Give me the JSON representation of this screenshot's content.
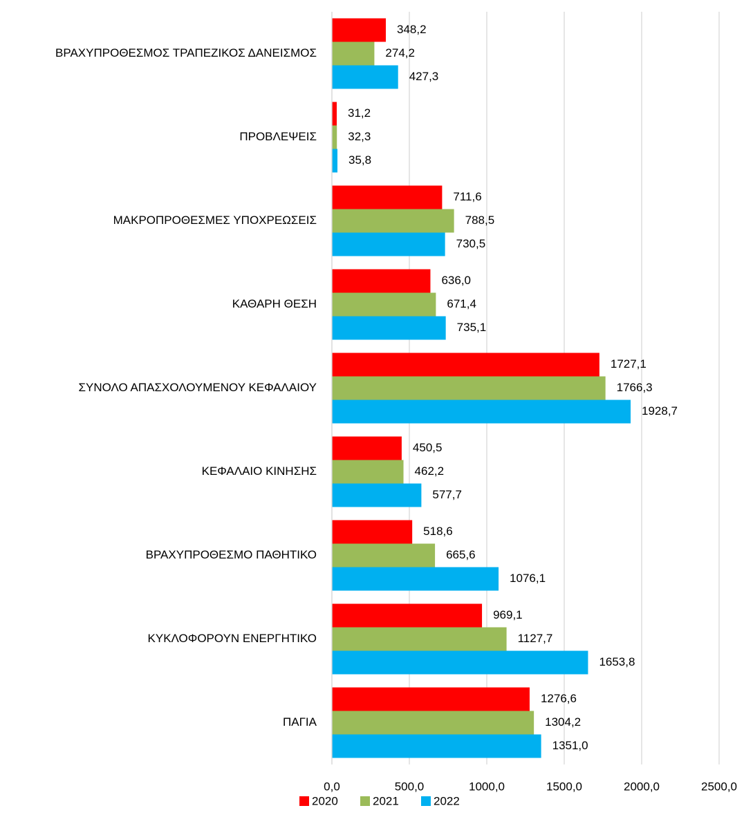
{
  "chart_data": {
    "type": "barh",
    "categories": [
      "ΒΡΑΧΥΠΡΟΘΕΣΜΟΣ ΤΡΑΠΕΖΙΚΟΣ ΔΑΝΕΙΣΜΟΣ",
      "ΠΡΟΒΛΕΨΕΙΣ",
      "ΜΑΚΡΟΠΡΟΘΕΣΜΕΣ ΥΠΟΧΡΕΩΣΕΙΣ",
      "ΚΑΘΑΡΗ ΘΕΣΗ",
      "ΣΥΝΟΛΟ ΑΠΑΣΧΟΛΟΥΜΕΝΟΥ ΚΕΦΑΛΑΙΟΥ",
      "ΚΕΦΑΛΑΙΟ ΚΙΝΗΣΗΣ",
      "ΒΡΑΧΥΠΡΟΘΕΣΜΟ ΠΑΘΗΤΙΚΟ",
      "ΚΥΚΛΟΦΟΡΟΥΝ ΕΝΕΡΓΗΤΙΚΟ",
      "ΠΑΓΙΑ"
    ],
    "series": [
      {
        "name": "2020",
        "color": "#ff0000",
        "label_color": "#000000",
        "values": [
          348.2,
          31.2,
          711.6,
          636.0,
          1727.1,
          450.5,
          518.6,
          969.1,
          1276.6
        ],
        "value_labels": [
          "348,2",
          "31,2",
          "711,6",
          "636,0",
          "1727,1",
          "450,5",
          "518,6",
          "969,1",
          "1276,6"
        ]
      },
      {
        "name": "2021",
        "color": "#9bbb59",
        "label_color": "#595959",
        "values": [
          274.2,
          32.3,
          788.5,
          671.4,
          1766.3,
          462.2,
          665.6,
          1127.7,
          1304.2
        ],
        "value_labels": [
          "274,2",
          "32,3",
          "788,5",
          "671,4",
          "1766,3",
          "462,2",
          "665,6",
          "1127,7",
          "1304,2"
        ]
      },
      {
        "name": "2022",
        "color": "#00b0f0",
        "label_color": "#000000",
        "values": [
          427.3,
          35.8,
          730.5,
          735.1,
          1928.7,
          577.7,
          1076.1,
          1653.8,
          1351.0
        ],
        "value_labels": [
          "427,3",
          "35,8",
          "730,5",
          "735,1",
          "1928,7",
          "577,7",
          "1076,1",
          "1653,8",
          "1351,0"
        ]
      }
    ],
    "xlim": [
      0,
      2500
    ],
    "xticks": [
      {
        "value": 0,
        "label": "0,0"
      },
      {
        "value": 500,
        "label": "500,0"
      },
      {
        "value": 1000,
        "label": "1000,0"
      },
      {
        "value": 1500,
        "label": "1500,0"
      },
      {
        "value": 2000,
        "label": "2000,0"
      },
      {
        "value": 2500,
        "label": "2500,0"
      }
    ],
    "grid": true,
    "legend": "bottom"
  }
}
